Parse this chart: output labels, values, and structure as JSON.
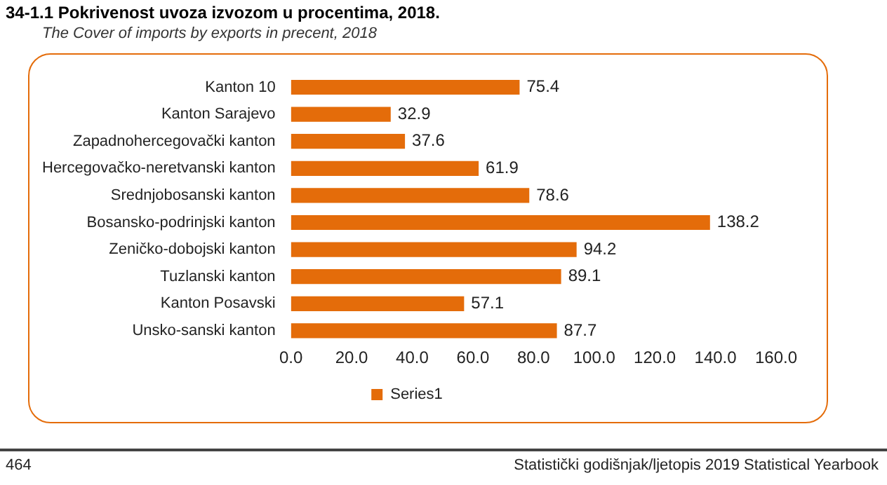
{
  "chart_data": {
    "type": "bar",
    "orientation": "horizontal",
    "title": "34-1.1 Pokrivenost uvoza izvozom u procentima, 2018.",
    "subtitle": "The Cover of imports by exports in precent, 2018",
    "categories": [
      "Kanton 10",
      "Kanton Sarajevo",
      "Zapadnohercegovački kanton",
      "Hercegovačko-neretvanski kanton",
      "Srednjobosanski kanton",
      "Bosansko-podrinjski kanton",
      "Zeničko-dobojski kanton",
      "Tuzlanski kanton",
      "Kanton Posavski",
      "Unsko-sanski kanton"
    ],
    "series": [
      {
        "name": "Series1",
        "color": "#e46c0a",
        "values": [
          75.4,
          32.9,
          37.6,
          61.9,
          78.6,
          138.2,
          94.2,
          89.1,
          57.1,
          87.7
        ]
      }
    ],
    "xlim": [
      0,
      160
    ],
    "xticks": [
      {
        "value": 0,
        "label": "0.0"
      },
      {
        "value": 20,
        "label": "20.0"
      },
      {
        "value": 40,
        "label": "40.0"
      },
      {
        "value": 60,
        "label": "60.0"
      },
      {
        "value": 80,
        "label": "80.0"
      },
      {
        "value": 100,
        "label": "100.0"
      },
      {
        "value": 120,
        "label": "120.0"
      },
      {
        "value": 140,
        "label": "140.0"
      },
      {
        "value": 160,
        "label": "160.0"
      }
    ],
    "data_labels": true,
    "grid": false,
    "legend": "bottom",
    "annotations": [
      "464",
      "Statistički godišnjak/ljetopis 2019 Statistical Yearbook"
    ]
  }
}
